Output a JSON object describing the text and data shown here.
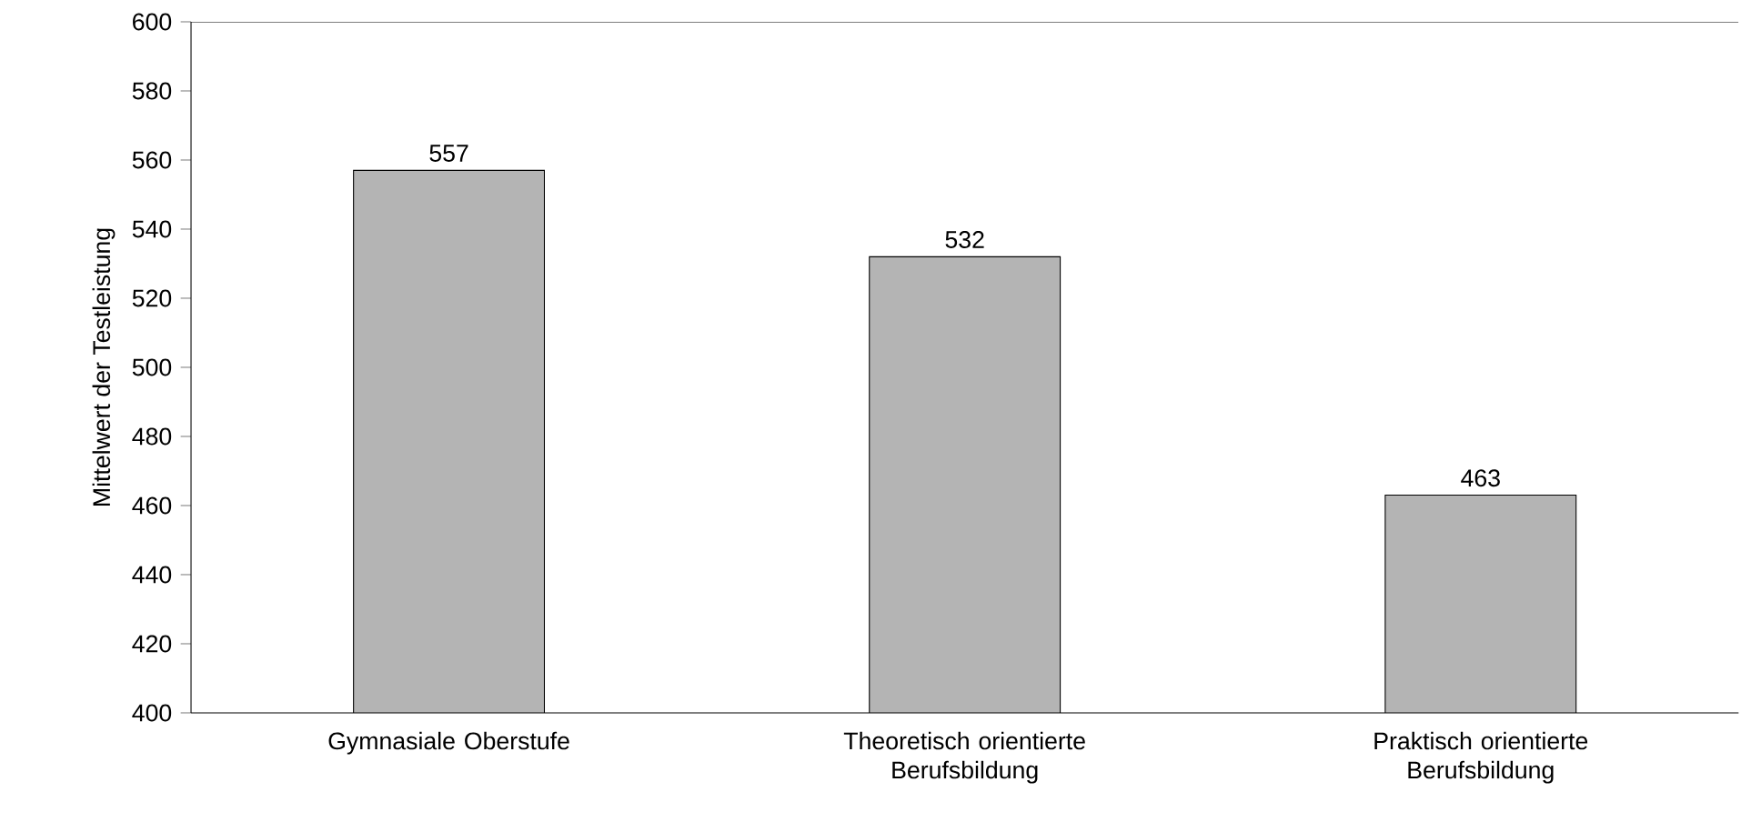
{
  "chart_data": {
    "type": "bar",
    "ylabel": "Mittelwert der Testleistung",
    "categories": [
      "Gymnasiale Oberstufe",
      "Theoretisch orientierte Berufsbildung",
      "Praktisch orientierte Berufsbildung"
    ],
    "values": [
      557,
      532,
      463
    ],
    "color": "#b4b4b4",
    "ylim": [
      400,
      600
    ],
    "yticks": [
      400,
      420,
      440,
      460,
      480,
      500,
      520,
      540,
      560,
      580,
      600
    ],
    "data_labels": true
  }
}
